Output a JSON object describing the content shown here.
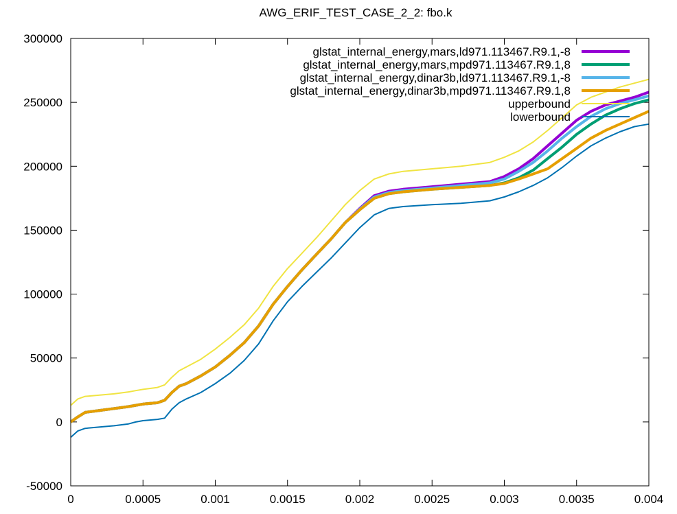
{
  "chart_data": {
    "type": "line",
    "title": "AWG_ERIF_TEST_CASE_2_2: fbo.k",
    "xlabel": "",
    "ylabel": "",
    "xlim": [
      0,
      0.004
    ],
    "ylim": [
      -50000,
      300000
    ],
    "x_ticks": [
      "0",
      "0.0005",
      "0.001",
      "0.0015",
      "0.002",
      "0.0025",
      "0.003",
      "0.0035",
      "0.004"
    ],
    "y_ticks": [
      "-50000",
      "0",
      "50000",
      "100000",
      "150000",
      "200000",
      "250000",
      "300000"
    ],
    "grid": false,
    "legend_position": "top-right",
    "series": [
      {
        "name": "glstat_internal_energy,mars,ld971.113467.R9.1,-8",
        "color": "#9400d3",
        "x": [
          0,
          5e-05,
          0.0001,
          0.0002,
          0.0003,
          0.0004,
          0.00045,
          0.0005,
          0.0006,
          0.00065,
          0.0007,
          0.00075,
          0.0008,
          0.0009,
          0.001,
          0.0011,
          0.0012,
          0.0013,
          0.0014,
          0.0015,
          0.0016,
          0.0017,
          0.0018,
          0.0019,
          0.002,
          0.0021,
          0.0022,
          0.0023,
          0.0025,
          0.0027,
          0.0029,
          0.003,
          0.0031,
          0.0032,
          0.0033,
          0.0034,
          0.0035,
          0.0036,
          0.0037,
          0.0038,
          0.0039,
          0.004
        ],
        "y": [
          0,
          4000,
          7500,
          9000,
          10500,
          12000,
          13000,
          14000,
          15000,
          17000,
          23000,
          28000,
          30000,
          36000,
          43000,
          52000,
          62000,
          75000,
          92000,
          106000,
          119000,
          131000,
          143000,
          156000,
          167000,
          177000,
          180500,
          182000,
          184000,
          186000,
          188000,
          192000,
          198000,
          206000,
          216000,
          226000,
          236000,
          243000,
          248000,
          251000,
          254000,
          258000
        ]
      },
      {
        "name": "glstat_internal_energy,mars,mpd971.113467.R9.1,8",
        "color": "#009e73",
        "x": [
          0,
          5e-05,
          0.0001,
          0.0002,
          0.0003,
          0.0004,
          0.00045,
          0.0005,
          0.0006,
          0.00065,
          0.0007,
          0.00075,
          0.0008,
          0.0009,
          0.001,
          0.0011,
          0.0012,
          0.0013,
          0.0014,
          0.0015,
          0.0016,
          0.0017,
          0.0018,
          0.0019,
          0.002,
          0.0021,
          0.0022,
          0.0023,
          0.0025,
          0.0027,
          0.0029,
          0.003,
          0.0031,
          0.0032,
          0.0033,
          0.0034,
          0.0035,
          0.0036,
          0.0037,
          0.0038,
          0.0039,
          0.004
        ],
        "y": [
          0,
          4000,
          7500,
          9000,
          10500,
          12000,
          13000,
          14000,
          15000,
          17000,
          23000,
          28000,
          30000,
          36000,
          43000,
          52000,
          62000,
          75000,
          92000,
          106000,
          119000,
          131000,
          143000,
          156000,
          166000,
          175000,
          178500,
          180000,
          182000,
          183500,
          185000,
          187000,
          191000,
          197000,
          206000,
          215000,
          225000,
          233000,
          240000,
          245000,
          249000,
          252000
        ]
      },
      {
        "name": "glstat_internal_energy,dinar3b,ld971.113467.R9.1,-8",
        "color": "#56b4e9",
        "x": [
          0,
          5e-05,
          0.0001,
          0.0002,
          0.0003,
          0.0004,
          0.00045,
          0.0005,
          0.0006,
          0.00065,
          0.0007,
          0.00075,
          0.0008,
          0.0009,
          0.001,
          0.0011,
          0.0012,
          0.0013,
          0.0014,
          0.0015,
          0.0016,
          0.0017,
          0.0018,
          0.0019,
          0.002,
          0.0021,
          0.0022,
          0.0023,
          0.0025,
          0.0027,
          0.0029,
          0.003,
          0.0031,
          0.0032,
          0.0033,
          0.0034,
          0.0035,
          0.0036,
          0.0037,
          0.0038,
          0.0039,
          0.004
        ],
        "y": [
          0,
          4000,
          7500,
          9000,
          10500,
          12000,
          13000,
          14000,
          15000,
          17000,
          23000,
          28000,
          30000,
          36000,
          43000,
          52000,
          62000,
          75000,
          92000,
          106000,
          119000,
          131000,
          143000,
          156000,
          166500,
          176000,
          179500,
          181000,
          183000,
          185000,
          187000,
          190000,
          196000,
          203000,
          212000,
          222000,
          231000,
          239000,
          245000,
          249000,
          252000,
          255000
        ]
      },
      {
        "name": "glstat_internal_energy,dinar3b,mpd971.113467.R9.1,8",
        "color": "#e69f00",
        "x": [
          0,
          5e-05,
          0.0001,
          0.0002,
          0.0003,
          0.0004,
          0.00045,
          0.0005,
          0.0006,
          0.00065,
          0.0007,
          0.00075,
          0.0008,
          0.0009,
          0.001,
          0.0011,
          0.0012,
          0.0013,
          0.0014,
          0.0015,
          0.0016,
          0.0017,
          0.0018,
          0.0019,
          0.002,
          0.0021,
          0.0022,
          0.0023,
          0.0025,
          0.0027,
          0.0029,
          0.003,
          0.0031,
          0.0032,
          0.0033,
          0.0034,
          0.0035,
          0.0036,
          0.0037,
          0.0038,
          0.0039,
          0.004
        ],
        "y": [
          0,
          4000,
          7500,
          9000,
          10500,
          12000,
          13000,
          14000,
          15000,
          17000,
          23000,
          28000,
          30000,
          36000,
          43000,
          52000,
          62000,
          75000,
          92000,
          106000,
          119000,
          131000,
          143000,
          156000,
          166000,
          175000,
          178500,
          180000,
          182000,
          183500,
          185000,
          186500,
          190000,
          194000,
          198000,
          206000,
          214000,
          222000,
          228000,
          233000,
          238000,
          243000
        ]
      },
      {
        "name": "upperbound",
        "color": "#f0e442",
        "x": [
          0,
          5e-05,
          0.0001,
          0.0002,
          0.0003,
          0.0004,
          0.00045,
          0.0005,
          0.0006,
          0.00065,
          0.0007,
          0.00075,
          0.0008,
          0.0009,
          0.001,
          0.0011,
          0.0012,
          0.0013,
          0.0014,
          0.0015,
          0.0016,
          0.0017,
          0.0018,
          0.0019,
          0.002,
          0.0021,
          0.0022,
          0.0023,
          0.0025,
          0.0027,
          0.0029,
          0.003,
          0.0031,
          0.0032,
          0.0033,
          0.0034,
          0.0035,
          0.0036,
          0.0037,
          0.0038,
          0.0039,
          0.004
        ],
        "y": [
          13000,
          18000,
          20000,
          21000,
          22000,
          23500,
          24500,
          25500,
          27000,
          29000,
          35000,
          40000,
          43000,
          49000,
          57000,
          66000,
          76000,
          89000,
          106000,
          120000,
          132000,
          144000,
          157000,
          170000,
          181000,
          190000,
          194000,
          196000,
          198000,
          200000,
          203000,
          207000,
          212000,
          219000,
          228000,
          238000,
          248000,
          254000,
          258000,
          262000,
          265000,
          268000
        ]
      },
      {
        "name": "lowerbound",
        "color": "#0072b2",
        "x": [
          0,
          5e-05,
          0.0001,
          0.0002,
          0.0003,
          0.0004,
          0.00045,
          0.0005,
          0.0006,
          0.00065,
          0.0007,
          0.00075,
          0.0008,
          0.0009,
          0.001,
          0.0011,
          0.0012,
          0.0013,
          0.0014,
          0.0015,
          0.0016,
          0.0017,
          0.0018,
          0.0019,
          0.002,
          0.0021,
          0.0022,
          0.0023,
          0.0025,
          0.0027,
          0.0029,
          0.003,
          0.0031,
          0.0032,
          0.0033,
          0.0034,
          0.0035,
          0.0036,
          0.0037,
          0.0038,
          0.0039,
          0.004
        ],
        "y": [
          -12000,
          -7000,
          -5000,
          -4000,
          -3000,
          -1500,
          0,
          1000,
          2000,
          3000,
          10000,
          15000,
          18000,
          23000,
          30000,
          38000,
          48000,
          61000,
          79000,
          94000,
          106000,
          117000,
          128000,
          140000,
          152000,
          162000,
          167000,
          168500,
          170000,
          171000,
          173000,
          176000,
          180000,
          185000,
          191000,
          199000,
          208000,
          216000,
          222000,
          227000,
          231000,
          233000
        ]
      }
    ]
  }
}
